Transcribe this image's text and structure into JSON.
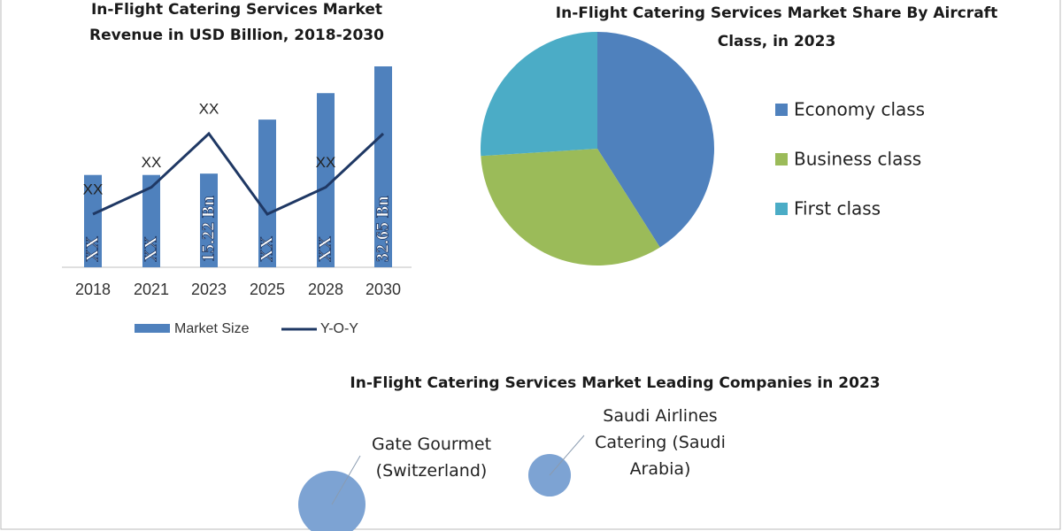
{
  "chart_data": [
    {
      "type": "combo",
      "title": "In-Flight Catering Services Market Revenue in USD Billion, 2018-2030",
      "categories": [
        "2018",
        "2021",
        "2023",
        "2025",
        "2028",
        "2030"
      ],
      "series": [
        {
          "name": "Market Size",
          "type": "bar",
          "color": "#4f81bd",
          "values": [
            15.0,
            15.0,
            15.22,
            24.0,
            28.3,
            32.65
          ],
          "value_labels": [
            "XX",
            "XX",
            "15.22 Bn",
            "XX",
            "XX",
            "32.65 Bn"
          ]
        },
        {
          "name": "Y-O-Y",
          "type": "line",
          "color": "#1f3864",
          "values": [
            2,
            4,
            8,
            2,
            4,
            8
          ],
          "value_labels": [
            "XX",
            "XX",
            "XX",
            null,
            "XX",
            null
          ]
        }
      ]
    },
    {
      "type": "pie",
      "title": "In-Flight Catering Services Market Share By Aircraft Class, in 2023",
      "categories": [
        "Economy class",
        "Business class",
        "First class"
      ],
      "values": [
        41,
        33,
        26
      ],
      "colors": [
        "#4f81bd",
        "#9bbb59",
        "#4bacc6"
      ]
    },
    {
      "type": "bubble",
      "title": "In-Flight Catering Services Market Leading Companies in 2023",
      "categories": [
        "Gate Gourmet (Switzerland)",
        "Saudi Airlines Catering (Saudi Arabia)"
      ],
      "values": [
        100,
        40
      ],
      "color": "#7da3d3"
    }
  ]
}
